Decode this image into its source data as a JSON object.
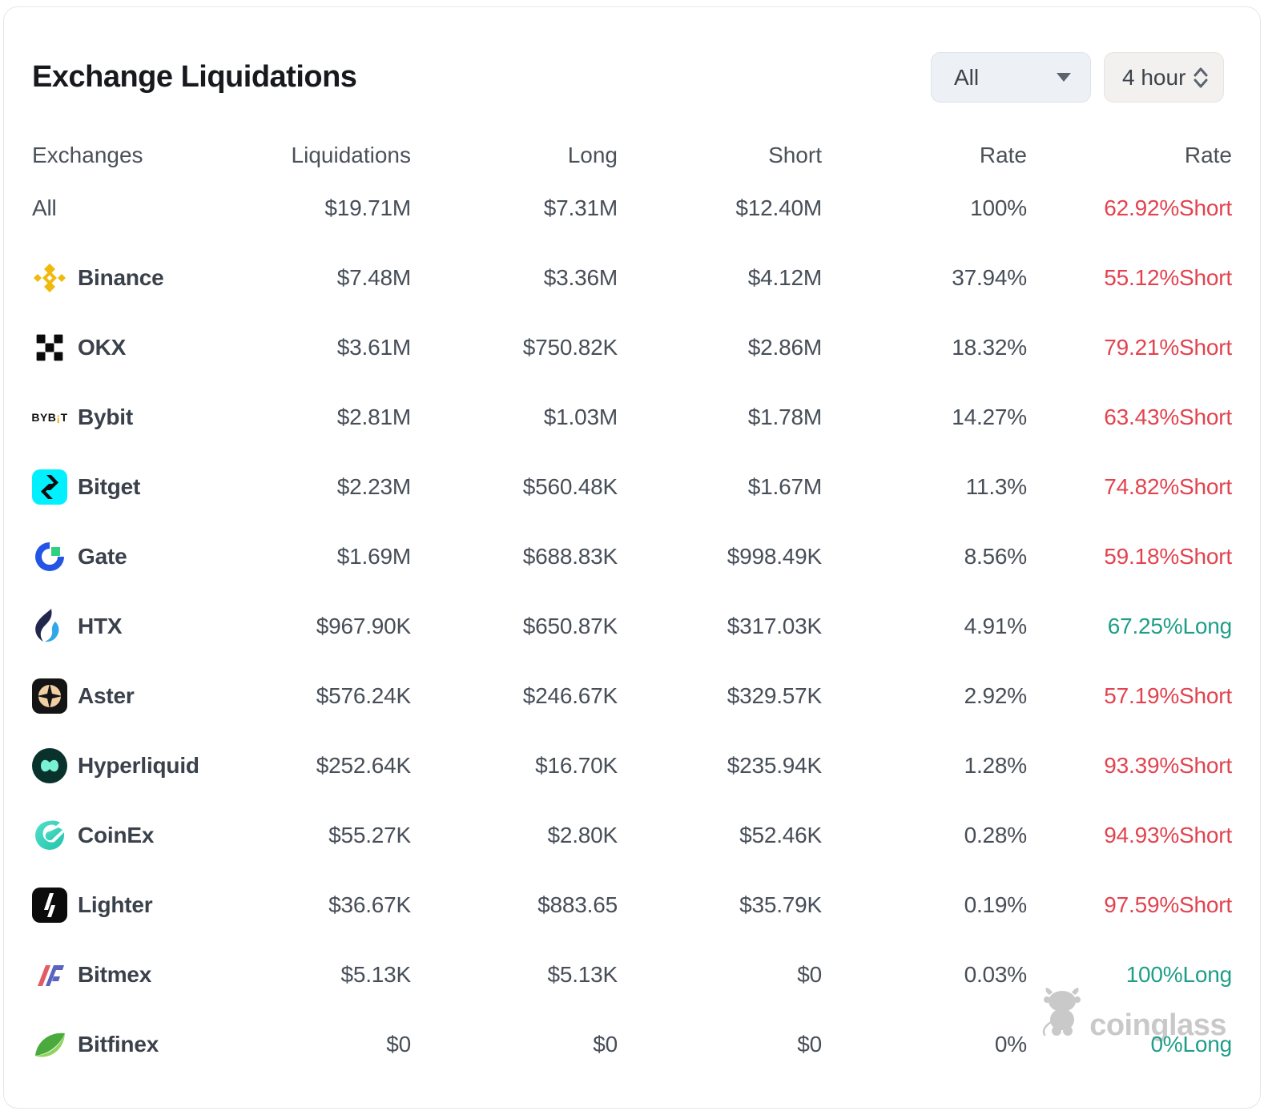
{
  "title": "Exchange Liquidations",
  "controls": {
    "symbol_select": {
      "value": "All"
    },
    "interval_select": {
      "value": "4 hour"
    }
  },
  "columns": [
    "Exchanges",
    "Liquidations",
    "Long",
    "Short",
    "Rate",
    "Rate"
  ],
  "rows": [
    {
      "name": "All",
      "icon": null,
      "liquidations": "$19.71M",
      "long": "$7.31M",
      "short": "$12.40M",
      "rate": "100%",
      "long_short_rate": "62.92%Short",
      "direction": "short"
    },
    {
      "name": "Binance",
      "icon": "binance-icon",
      "liquidations": "$7.48M",
      "long": "$3.36M",
      "short": "$4.12M",
      "rate": "37.94%",
      "long_short_rate": "55.12%Short",
      "direction": "short"
    },
    {
      "name": "OKX",
      "icon": "okx-icon",
      "liquidations": "$3.61M",
      "long": "$750.82K",
      "short": "$2.86M",
      "rate": "18.32%",
      "long_short_rate": "79.21%Short",
      "direction": "short"
    },
    {
      "name": "Bybit",
      "icon": "bybit-icon",
      "liquidations": "$2.81M",
      "long": "$1.03M",
      "short": "$1.78M",
      "rate": "14.27%",
      "long_short_rate": "63.43%Short",
      "direction": "short"
    },
    {
      "name": "Bitget",
      "icon": "bitget-icon",
      "liquidations": "$2.23M",
      "long": "$560.48K",
      "short": "$1.67M",
      "rate": "11.3%",
      "long_short_rate": "74.82%Short",
      "direction": "short"
    },
    {
      "name": "Gate",
      "icon": "gate-icon",
      "liquidations": "$1.69M",
      "long": "$688.83K",
      "short": "$998.49K",
      "rate": "8.56%",
      "long_short_rate": "59.18%Short",
      "direction": "short"
    },
    {
      "name": "HTX",
      "icon": "htx-icon",
      "liquidations": "$967.90K",
      "long": "$650.87K",
      "short": "$317.03K",
      "rate": "4.91%",
      "long_short_rate": "67.25%Long",
      "direction": "long"
    },
    {
      "name": "Aster",
      "icon": "aster-icon",
      "liquidations": "$576.24K",
      "long": "$246.67K",
      "short": "$329.57K",
      "rate": "2.92%",
      "long_short_rate": "57.19%Short",
      "direction": "short"
    },
    {
      "name": "Hyperliquid",
      "icon": "hyperliquid-icon",
      "liquidations": "$252.64K",
      "long": "$16.70K",
      "short": "$235.94K",
      "rate": "1.28%",
      "long_short_rate": "93.39%Short",
      "direction": "short"
    },
    {
      "name": "CoinEx",
      "icon": "coinex-icon",
      "liquidations": "$55.27K",
      "long": "$2.80K",
      "short": "$52.46K",
      "rate": "0.28%",
      "long_short_rate": "94.93%Short",
      "direction": "short"
    },
    {
      "name": "Lighter",
      "icon": "lighter-icon",
      "liquidations": "$36.67K",
      "long": "$883.65",
      "short": "$35.79K",
      "rate": "0.19%",
      "long_short_rate": "97.59%Short",
      "direction": "short"
    },
    {
      "name": "Bitmex",
      "icon": "bitmex-icon",
      "liquidations": "$5.13K",
      "long": "$5.13K",
      "short": "$0",
      "rate": "0.03%",
      "long_short_rate": "100%Long",
      "direction": "long"
    },
    {
      "name": "Bitfinex",
      "icon": "bitfinex-icon",
      "liquidations": "$0",
      "long": "$0",
      "short": "$0",
      "rate": "0%",
      "long_short_rate": "0%Long",
      "direction": "long"
    }
  ],
  "watermark": {
    "label": "coinglass"
  },
  "colors": {
    "short_red": "#e2434f",
    "long_green": "#1e9e88",
    "binance_yellow": "#f0b90b",
    "bitget_cyan": "#00f0ff",
    "bybit_orange": "#f7a600"
  }
}
